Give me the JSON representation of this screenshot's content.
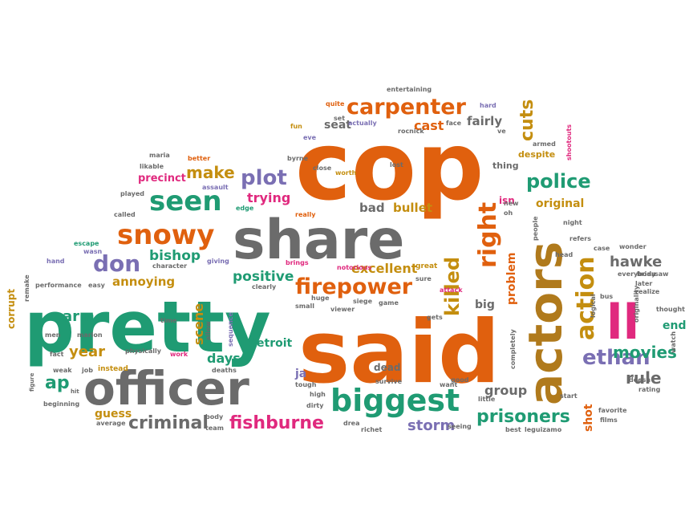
{
  "colors": {
    "orange": "#e0600e",
    "green": "#1f9b73",
    "grey": "#6b6b6b",
    "purple": "#7a6fb3",
    "gold": "#c48e0f",
    "pink": "#e0297e",
    "brown": "#b07a1c"
  },
  "words": [
    {
      "text": "cop",
      "color": "orange"
    },
    {
      "text": "said",
      "color": "orange"
    },
    {
      "text": "pretty",
      "color": "green"
    },
    {
      "text": "share",
      "color": "grey"
    },
    {
      "text": "officer",
      "color": "grey"
    },
    {
      "text": "actors",
      "color": "brown"
    },
    {
      "text": "biggest",
      "color": "green"
    },
    {
      "text": "ll",
      "color": "pink"
    },
    {
      "text": "snowy",
      "color": "orange"
    },
    {
      "text": "action",
      "color": "gold"
    },
    {
      "text": "seen",
      "color": "green"
    },
    {
      "text": "right",
      "color": "orange"
    },
    {
      "text": "carpenter",
      "color": "orange"
    },
    {
      "text": "firepower",
      "color": "orange"
    },
    {
      "text": "killed",
      "color": "gold"
    },
    {
      "text": "don",
      "color": "purple"
    },
    {
      "text": "ethan",
      "color": "purple"
    },
    {
      "text": "prisoners",
      "color": "green"
    },
    {
      "text": "police",
      "color": "green"
    },
    {
      "text": "criminal",
      "color": "grey"
    },
    {
      "text": "plot",
      "color": "purple"
    },
    {
      "text": "fishburne",
      "color": "pink"
    },
    {
      "text": "cuts",
      "color": "gold"
    },
    {
      "text": "make",
      "color": "gold"
    },
    {
      "text": "movies",
      "color": "green"
    },
    {
      "text": "ap",
      "color": "green"
    },
    {
      "text": "rule",
      "color": "grey"
    },
    {
      "text": "hawke",
      "color": "grey"
    },
    {
      "text": "year",
      "color": "gold"
    },
    {
      "text": "bishop",
      "color": "green"
    },
    {
      "text": "arm",
      "color": "green"
    },
    {
      "text": "storm",
      "color": "purple"
    },
    {
      "text": "positive",
      "color": "green"
    },
    {
      "text": "excellent",
      "color": "gold"
    },
    {
      "text": "scene",
      "color": "gold"
    },
    {
      "text": "days",
      "color": "green"
    },
    {
      "text": "trying",
      "color": "pink"
    },
    {
      "text": "annoying",
      "color": "gold"
    },
    {
      "text": "end",
      "color": "green"
    },
    {
      "text": "group",
      "color": "grey"
    },
    {
      "text": "shot",
      "color": "orange"
    },
    {
      "text": "big",
      "color": "grey"
    },
    {
      "text": "problem",
      "color": "orange"
    },
    {
      "text": "bad",
      "color": "grey"
    },
    {
      "text": "bullet",
      "color": "gold"
    },
    {
      "text": "detroit",
      "color": "green"
    },
    {
      "text": "guess",
      "color": "gold"
    },
    {
      "text": "original",
      "color": "gold"
    },
    {
      "text": "fairly",
      "color": "grey"
    },
    {
      "text": "cast",
      "color": "orange"
    },
    {
      "text": "seat",
      "color": "grey"
    },
    {
      "text": "precinct",
      "color": "pink"
    },
    {
      "text": "corrupt",
      "color": "gold"
    },
    {
      "text": "dead",
      "color": "grey"
    },
    {
      "text": "ja",
      "color": "purple"
    },
    {
      "text": "isn",
      "color": "pink"
    },
    {
      "text": "entertaining",
      "color": "grey"
    },
    {
      "text": "quite",
      "color": "orange"
    },
    {
      "text": "hard",
      "color": "purple"
    },
    {
      "text": "actually",
      "color": "purple"
    },
    {
      "text": "face",
      "color": "grey"
    },
    {
      "text": "rocnick",
      "color": "grey"
    },
    {
      "text": "fun",
      "color": "gold"
    },
    {
      "text": "eve",
      "color": "purple"
    },
    {
      "text": "set",
      "color": "grey"
    },
    {
      "text": "armed",
      "color": "grey"
    },
    {
      "text": "despite",
      "color": "gold"
    },
    {
      "text": "ve",
      "color": "grey"
    },
    {
      "text": "shootouts",
      "color": "pink"
    },
    {
      "text": "likable",
      "color": "grey"
    },
    {
      "text": "better",
      "color": "orange"
    },
    {
      "text": "maria",
      "color": "grey"
    },
    {
      "text": "assault",
      "color": "purple"
    },
    {
      "text": "played",
      "color": "grey"
    },
    {
      "text": "called",
      "color": "grey"
    },
    {
      "text": "byrne",
      "color": "grey"
    },
    {
      "text": "close",
      "color": "grey"
    },
    {
      "text": "worth",
      "color": "gold"
    },
    {
      "text": "lost",
      "color": "grey"
    },
    {
      "text": "thing",
      "color": "grey"
    },
    {
      "text": "really",
      "color": "orange"
    },
    {
      "text": "edge",
      "color": "green"
    },
    {
      "text": "escape",
      "color": "green"
    },
    {
      "text": "wasn",
      "color": "purple"
    },
    {
      "text": "hand",
      "color": "purple"
    },
    {
      "text": "character",
      "color": "grey"
    },
    {
      "text": "giving",
      "color": "purple"
    },
    {
      "text": "brings",
      "color": "pink"
    },
    {
      "text": "notorious",
      "color": "pink"
    },
    {
      "text": "great",
      "color": "gold"
    },
    {
      "text": "easy",
      "color": "grey"
    },
    {
      "text": "performance",
      "color": "grey"
    },
    {
      "text": "remake",
      "color": "grey"
    },
    {
      "text": "clearly",
      "color": "grey"
    },
    {
      "text": "sure",
      "color": "grey"
    },
    {
      "text": "huge",
      "color": "grey"
    },
    {
      "text": "small",
      "color": "grey"
    },
    {
      "text": "siege",
      "color": "grey"
    },
    {
      "text": "viewer",
      "color": "grey"
    },
    {
      "text": "game",
      "color": "grey"
    },
    {
      "text": "attack",
      "color": "pink"
    },
    {
      "text": "people",
      "color": "grey"
    },
    {
      "text": "head",
      "color": "grey"
    },
    {
      "text": "refers",
      "color": "grey"
    },
    {
      "text": "wonder",
      "color": "grey"
    },
    {
      "text": "saw",
      "color": "grey"
    },
    {
      "text": "later",
      "color": "grey"
    },
    {
      "text": "realize",
      "color": "grey"
    },
    {
      "text": "thought",
      "color": "grey"
    },
    {
      "text": "everybody",
      "color": "grey"
    },
    {
      "text": "brian",
      "color": "grey"
    },
    {
      "text": "originality",
      "color": "grey"
    },
    {
      "text": "bus",
      "color": "grey"
    },
    {
      "text": "logical",
      "color": "grey"
    },
    {
      "text": "completely",
      "color": "grey"
    },
    {
      "text": "gets",
      "color": "grey"
    },
    {
      "text": "time",
      "color": "grey"
    },
    {
      "text": "allow",
      "color": "grey"
    },
    {
      "text": "sequence",
      "color": "purple"
    },
    {
      "text": "men",
      "color": "grey"
    },
    {
      "text": "marion",
      "color": "grey"
    },
    {
      "text": "physically",
      "color": "grey"
    },
    {
      "text": "work",
      "color": "pink"
    },
    {
      "text": "deaths",
      "color": "grey"
    },
    {
      "text": "fact",
      "color": "grey"
    },
    {
      "text": "weak",
      "color": "grey"
    },
    {
      "text": "job",
      "color": "grey"
    },
    {
      "text": "instead",
      "color": "gold"
    },
    {
      "text": "figure",
      "color": "grey"
    },
    {
      "text": "hit",
      "color": "grey"
    },
    {
      "text": "beginning",
      "color": "grey"
    },
    {
      "text": "average",
      "color": "grey"
    },
    {
      "text": "body",
      "color": "grey"
    },
    {
      "text": "team",
      "color": "grey"
    },
    {
      "text": "tough",
      "color": "grey"
    },
    {
      "text": "high",
      "color": "grey"
    },
    {
      "text": "dirty",
      "color": "grey"
    },
    {
      "text": "drea",
      "color": "grey"
    },
    {
      "text": "richet",
      "color": "grey"
    },
    {
      "text": "want",
      "color": "grey"
    },
    {
      "text": "good",
      "color": "grey"
    },
    {
      "text": "little",
      "color": "grey"
    },
    {
      "text": "seeing",
      "color": "grey"
    },
    {
      "text": "best",
      "color": "grey"
    },
    {
      "text": "start",
      "color": "grey"
    },
    {
      "text": "leguizamo",
      "color": "grey"
    },
    {
      "text": "doesn",
      "color": "grey"
    },
    {
      "text": "rating",
      "color": "grey"
    },
    {
      "text": "favorite",
      "color": "grey"
    },
    {
      "text": "films",
      "color": "grey"
    },
    {
      "text": "case",
      "color": "grey"
    },
    {
      "text": "watch",
      "color": "grey"
    },
    {
      "text": "night",
      "color": "grey"
    },
    {
      "text": "new",
      "color": "grey"
    },
    {
      "text": "oh",
      "color": "grey"
    },
    {
      "text": "survive",
      "color": "grey"
    }
  ]
}
